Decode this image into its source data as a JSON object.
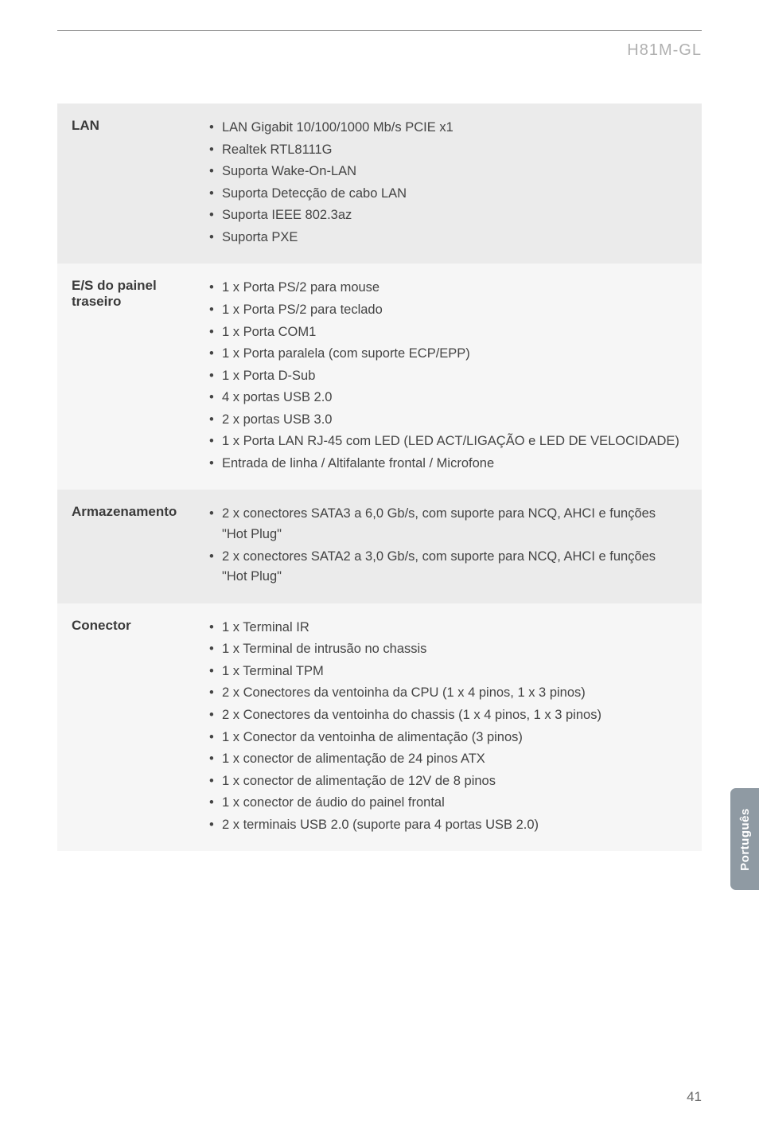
{
  "header": {
    "product_name": "H81M-GL"
  },
  "rows": [
    {
      "label": "LAN",
      "items": [
        "LAN Gigabit 10/100/1000 Mb/s PCIE x1",
        "Realtek RTL8111G",
        "Suporta Wake-On-LAN",
        "Suporta Detecção de cabo LAN",
        "Suporta IEEE 802.3az",
        "Suporta PXE"
      ]
    },
    {
      "label": "E/S do painel traseiro",
      "items": [
        "1 x Porta PS/2 para mouse",
        "1 x Porta PS/2 para teclado",
        "1 x Porta COM1",
        "1 x Porta paralela (com suporte ECP/EPP)",
        "1 x Porta D-Sub",
        "4 x portas USB 2.0",
        "2 x portas USB 3.0",
        "1 x Porta LAN RJ-45 com LED (LED ACT/LIGAÇÃO e LED DE VELOCIDADE)",
        "Entrada de linha / Altifalante frontal / Microfone"
      ]
    },
    {
      "label": "Armazenamento",
      "items": [
        "2 x conectores SATA3 a 6,0 Gb/s, com suporte para NCQ, AHCI e funções \"Hot Plug\"",
        "2 x conectores SATA2 a 3,0 Gb/s, com suporte para NCQ, AHCI e funções \"Hot Plug\""
      ]
    },
    {
      "label": "Conector",
      "items": [
        "1 x Terminal IR",
        "1 x Terminal de intrusão no chassis",
        "1 x Terminal TPM",
        "2 x Conectores da ventoinha da CPU (1 x 4 pinos, 1 x 3 pinos)",
        "2 x Conectores da ventoinha do chassis (1 x 4 pinos, 1 x 3 pinos)",
        "1 x Conector da ventoinha de alimentação (3 pinos)",
        "1 x conector de alimentação de 24 pinos ATX",
        "1 x conector de alimentação de 12V de 8 pinos",
        "1 x conector de áudio do painel frontal",
        "2 x terminais USB 2.0 (suporte para 4 portas USB 2.0)"
      ]
    }
  ],
  "side_tab": "Português",
  "page_number": "41",
  "colors": {
    "row_odd_bg": "#ebebeb",
    "row_even_bg": "#f6f6f6",
    "label_color": "#3a3a3a",
    "value_color": "#444444",
    "product_color": "#b0b0b0",
    "tab_bg": "#8f9aa3",
    "tab_text": "#ffffff",
    "page_num_color": "#6a6a6a"
  }
}
